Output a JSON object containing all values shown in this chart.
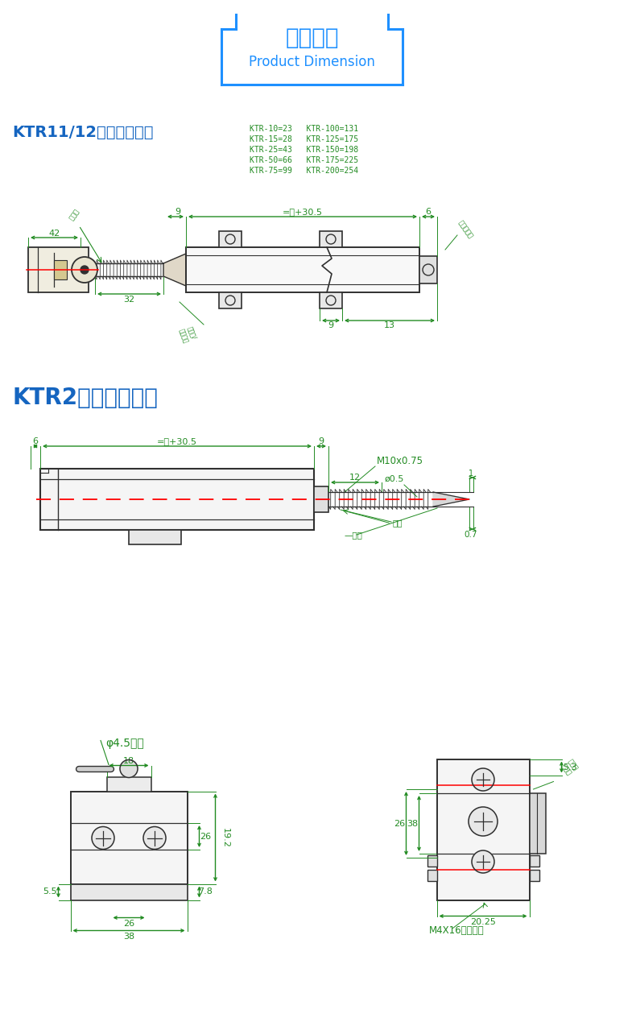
{
  "bg_color": "#ffffff",
  "title_cn": "产品尺寸",
  "title_en": "Product Dimension",
  "title_box_color": "#1e90ff",
  "dim_color": "#228B22",
  "line_color": "#303030",
  "red_line_color": "#ff0000",
  "ktr_table": [
    "KTR-10=23   KTR-100=131",
    "KTR-15=28   KTR-125=175",
    "KTR-25=43   KTR-150=198",
    "KTR-50=66   KTR-175=225",
    "KTR-75=99   KTR-200=254"
  ],
  "section1_title": "KTR11/12安装尺寸图：",
  "section2_title": "KTR2安装尺寸图："
}
